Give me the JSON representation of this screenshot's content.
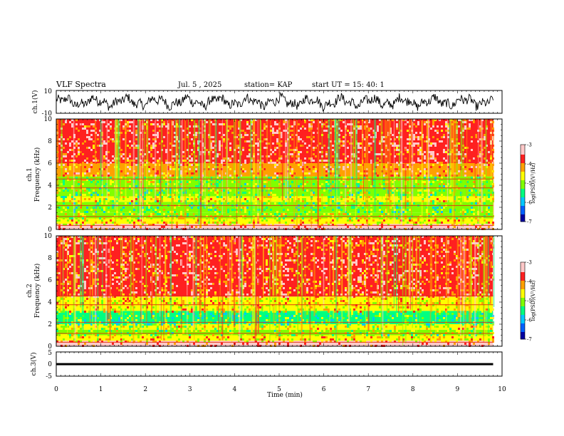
{
  "header": {
    "title": "VLF Spectra",
    "date": "Jul. 5 , 2025",
    "station": "station= KAP",
    "start": "start UT = 15: 40: 1"
  },
  "colors": {
    "spectrum": [
      "#0000a0",
      "#0060ff",
      "#00c8ff",
      "#00ff80",
      "#80ff00",
      "#ffff00",
      "#ffa000",
      "#ff2020",
      "#ffc8c8"
    ]
  },
  "chart_data": [
    {
      "panel": "ch1-waveform",
      "type": "line",
      "ylabel": "ch.1(V)",
      "ylim": [
        -10,
        10
      ],
      "yticklabels": [
        "10",
        "-10"
      ],
      "xlim": [
        0,
        10
      ],
      "trace_center": 0,
      "trace_amplitude": 5
    },
    {
      "panel": "ch1-spectrogram",
      "type": "heatmap",
      "ylabel": "ch.1 Frequency (kHz)",
      "ylim": [
        0,
        10
      ],
      "yticklabels": [
        "0",
        "2",
        "4",
        "6",
        "8",
        "10"
      ],
      "xlim": [
        0,
        10
      ],
      "data_end_min": 9.8,
      "bands_khz": [
        {
          "from": 0.0,
          "to": 0.5,
          "level": -3.3
        },
        {
          "from": 0.5,
          "to": 1.0,
          "level": -4.4
        },
        {
          "from": 1.0,
          "to": 1.5,
          "level": -4.8
        },
        {
          "from": 1.5,
          "to": 2.5,
          "level": -5.1
        },
        {
          "from": 2.5,
          "to": 3.0,
          "level": -4.6
        },
        {
          "from": 3.0,
          "to": 4.0,
          "level": -5.0
        },
        {
          "from": 4.0,
          "to": 4.8,
          "level": -4.9
        },
        {
          "from": 4.8,
          "to": 6.0,
          "level": -3.9
        },
        {
          "from": 6.0,
          "to": 10.0,
          "level": -3.6
        }
      ],
      "colorbar": {
        "label": "log(PSD)(V²/Hz)",
        "min": -7,
        "max": -3,
        "ticks": [
          "-3",
          "-4",
          "-5",
          "-6",
          "-7"
        ]
      }
    },
    {
      "panel": "ch2-spectrogram",
      "type": "heatmap",
      "ylabel": "ch.2 Frequency (kHz)",
      "ylim": [
        0,
        10
      ],
      "yticklabels": [
        "0",
        "2",
        "4",
        "6",
        "8",
        "10"
      ],
      "xlim": [
        0,
        10
      ],
      "data_end_min": 9.8,
      "bands_khz": [
        {
          "from": 0.0,
          "to": 0.5,
          "level": -3.4
        },
        {
          "from": 0.5,
          "to": 1.0,
          "level": -4.4
        },
        {
          "from": 1.0,
          "to": 1.5,
          "level": -4.9
        },
        {
          "from": 1.5,
          "to": 2.0,
          "level": -4.6
        },
        {
          "from": 2.0,
          "to": 3.2,
          "level": -5.3
        },
        {
          "from": 3.2,
          "to": 4.5,
          "level": -4.4
        },
        {
          "from": 4.5,
          "to": 10.0,
          "level": -3.7
        }
      ],
      "colorbar": {
        "label": "log(PSD)(V²/Hz)",
        "min": -7,
        "max": -3,
        "ticks": [
          "-3",
          "-4",
          "-5",
          "-6",
          "-7"
        ]
      }
    },
    {
      "panel": "ch3-waveform",
      "type": "line",
      "ylabel": "ch.3(V)",
      "ylim": [
        -5,
        5
      ],
      "yticklabels": [
        "5",
        "0",
        "-5"
      ],
      "xlim": [
        0,
        10
      ],
      "trace_center": 0,
      "trace_amplitude": 0.4,
      "xlabel": "Time (min)",
      "xticklabels": [
        "0",
        "1",
        "2",
        "3",
        "4",
        "5",
        "6",
        "7",
        "8",
        "9",
        "10"
      ]
    }
  ]
}
